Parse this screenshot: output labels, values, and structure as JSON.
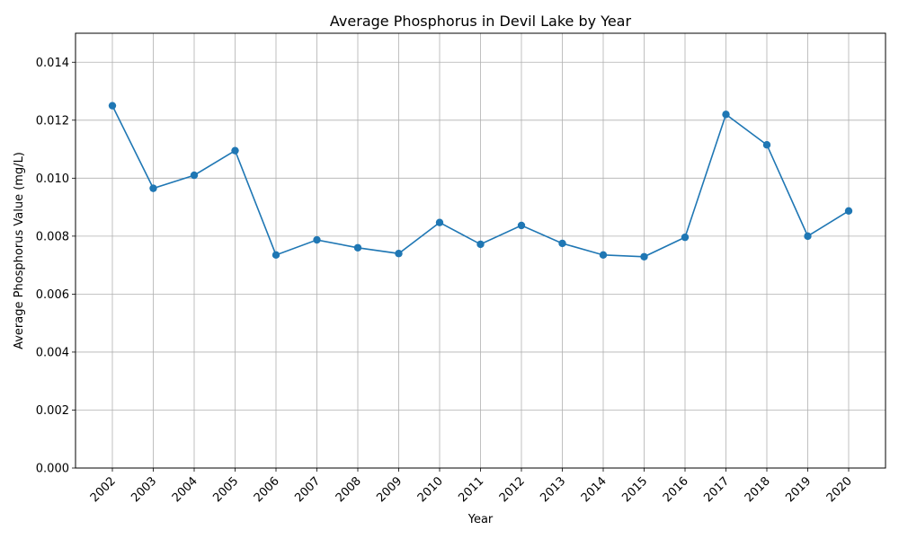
{
  "chart_data": {
    "type": "line",
    "title": "Average Phosphorus in Devil Lake by Year",
    "xlabel": "Year",
    "ylabel": "Average Phosphorus Value (mg/L)",
    "categories": [
      "2002",
      "2003",
      "2004",
      "2005",
      "2006",
      "2007",
      "2008",
      "2009",
      "2010",
      "2011",
      "2012",
      "2013",
      "2014",
      "2015",
      "2016",
      "2017",
      "2018",
      "2019",
      "2020"
    ],
    "series": [
      {
        "values": [
          0.0125,
          0.00965,
          0.0101,
          0.01095,
          0.00735,
          0.00787,
          0.0076,
          0.0074,
          0.00847,
          0.00772,
          0.00837,
          0.00775,
          0.00735,
          0.00729,
          0.00796,
          0.0122,
          0.01115,
          0.008,
          0.00887
        ],
        "color": "#1f77b4",
        "marker": "circle"
      }
    ],
    "ylim": [
      0,
      0.015
    ],
    "yticks": [
      "0.000",
      "0.002",
      "0.004",
      "0.006",
      "0.008",
      "0.010",
      "0.012",
      "0.014"
    ],
    "ytick_values": [
      0,
      0.002,
      0.004,
      0.006,
      0.008,
      0.01,
      0.012,
      0.014
    ],
    "grid": true,
    "xtick_rotation": "45-degrees",
    "legend": "none"
  }
}
